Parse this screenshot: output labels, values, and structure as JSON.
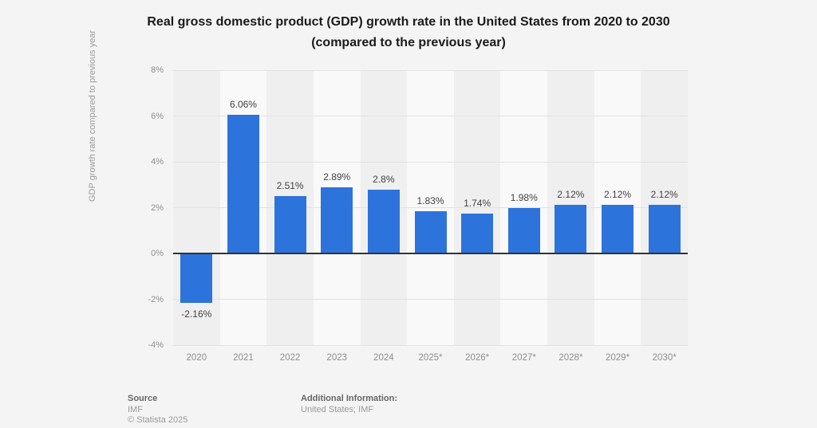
{
  "chart_data": {
    "type": "bar",
    "title": "Real gross domestic product (GDP) growth rate in the United States from 2020 to 2030 (compared to the previous year)",
    "title_line1": "Real gross domestic product (GDP) growth rate in the United States from 2020 to 2030",
    "title_line2": "(compared to the previous year)",
    "xlabel": "",
    "ylabel": "GDP growth rate compared to previous year",
    "categories": [
      "2020",
      "2021",
      "2022",
      "2023",
      "2024",
      "2025*",
      "2026*",
      "2027*",
      "2028*",
      "2029*",
      "2030*"
    ],
    "values": [
      -2.16,
      6.06,
      2.51,
      2.89,
      2.8,
      1.83,
      1.74,
      1.98,
      2.12,
      2.12,
      2.12
    ],
    "value_labels": [
      "-2.16%",
      "6.06%",
      "2.51%",
      "2.89%",
      "2.8%",
      "1.83%",
      "1.74%",
      "1.98%",
      "2.12%",
      "2.12%",
      "2.12%"
    ],
    "ylim": [
      -4,
      8
    ],
    "ytick_values": [
      8,
      6,
      4,
      2,
      0,
      -2,
      -4
    ],
    "ytick_labels": [
      "8%",
      "6%",
      "4%",
      "2%",
      "0%",
      "-2%",
      "-4%"
    ],
    "grid": true,
    "legend_position": "none",
    "colors": {
      "bar": "#2d73dc",
      "background": "#f4f4f4",
      "band_even": "#efefef",
      "band_odd": "#f9f9f9",
      "gridline": "#e3e3e3",
      "zero_line": "#333333",
      "tick_text": "#8f8f8f",
      "value_text": "#424242",
      "title_text": "#1a1a1a"
    }
  },
  "footer": {
    "source_label": "Source",
    "source_value": "IMF",
    "copyright": "© Statista 2025",
    "additional_label": "Additional Information:",
    "additional_value": "United States; IMF"
  }
}
